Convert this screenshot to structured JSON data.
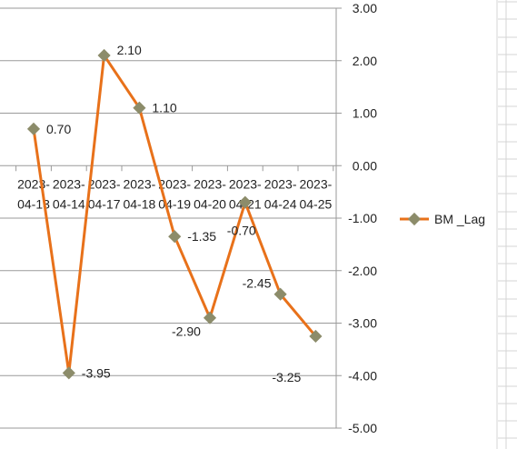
{
  "chart_data": {
    "type": "line",
    "categories": [
      "2023-04-13",
      "2023-04-14",
      "2023-04-17",
      "2023-04-18",
      "2023-04-19",
      "2023-04-20",
      "2023-04-21",
      "2023-04-24",
      "2023-04-25"
    ],
    "tick_top": [
      "2023-",
      "2023-",
      "2023-",
      "2023-",
      "2023-",
      "2023-",
      "2023-",
      "2023-",
      "2023-"
    ],
    "tick_bottom": [
      "04-13",
      "04-14",
      "04-17",
      "04-18",
      "04-19",
      "04-20",
      "04-21",
      "04-24",
      "04-25"
    ],
    "series": [
      {
        "name": "BM _Lag",
        "values": [
          0.7,
          -3.95,
          2.1,
          1.1,
          -1.35,
          -2.9,
          -0.7,
          -2.45,
          -3.25
        ],
        "labels": [
          "0.70",
          "-3.95",
          "2.10",
          "1.10",
          "-1.35",
          "-2.90",
          "-0.70",
          "-2.45",
          "-3.25"
        ],
        "line_color": "#E8711A",
        "marker_color": "#8C8C6A"
      }
    ],
    "ylim": [
      -5,
      3
    ],
    "y_ticks": [
      "3.00",
      "2.00",
      "1.00",
      "0.00",
      "-1.00",
      "-2.00",
      "-3.00",
      "-4.00",
      "-5.00"
    ],
    "grid": true,
    "legend_position": "right",
    "axis_position": "right",
    "title": "",
    "xlabel": "",
    "ylabel": ""
  }
}
